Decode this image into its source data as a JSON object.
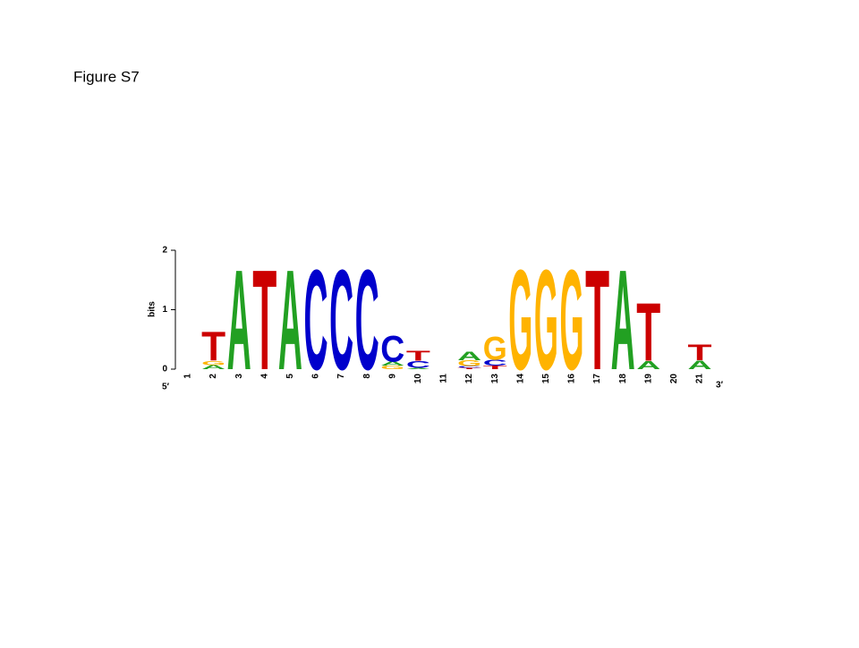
{
  "chart_data": {
    "type": "logo",
    "title": "Figure S7",
    "ylabel": "bits",
    "five_prime": "5′",
    "three_prime": "3′",
    "ylim": [
      0,
      2
    ],
    "yticks": [
      0,
      1,
      2
    ],
    "categories": [
      "1",
      "2",
      "3",
      "4",
      "5",
      "6",
      "7",
      "8",
      "9",
      "10",
      "11",
      "12",
      "13",
      "14",
      "15",
      "16",
      "17",
      "18",
      "19",
      "20",
      "21"
    ],
    "series": [
      {
        "name": "A",
        "color": "#22a022",
        "values": [
          0,
          0.07,
          1.73,
          0,
          1.73,
          0,
          0,
          0,
          0.07,
          0.02,
          0,
          0.15,
          0,
          0,
          0,
          0,
          0,
          1.73,
          0.14,
          0,
          0.15
        ]
      },
      {
        "name": "C",
        "color": "#0000cc",
        "values": [
          0,
          0,
          0,
          0,
          0,
          1.73,
          1.73,
          1.73,
          0.45,
          0.12,
          0,
          0.03,
          0.1,
          0,
          0,
          0,
          0,
          0,
          0,
          0,
          0
        ]
      },
      {
        "name": "G",
        "color": "#ffb300",
        "values": [
          0,
          0.07,
          0,
          0,
          0,
          0,
          0,
          0,
          0.06,
          0,
          0,
          0.1,
          0.4,
          1.73,
          1.73,
          1.73,
          0,
          0,
          0,
          0,
          0
        ]
      },
      {
        "name": "T",
        "color": "#cc0000",
        "values": [
          0,
          0.5,
          0,
          1.73,
          0,
          0,
          0,
          0,
          0,
          0.17,
          0,
          0.02,
          0.06,
          0,
          0,
          0,
          1.73,
          0,
          1.0,
          0,
          0.27
        ]
      }
    ]
  }
}
